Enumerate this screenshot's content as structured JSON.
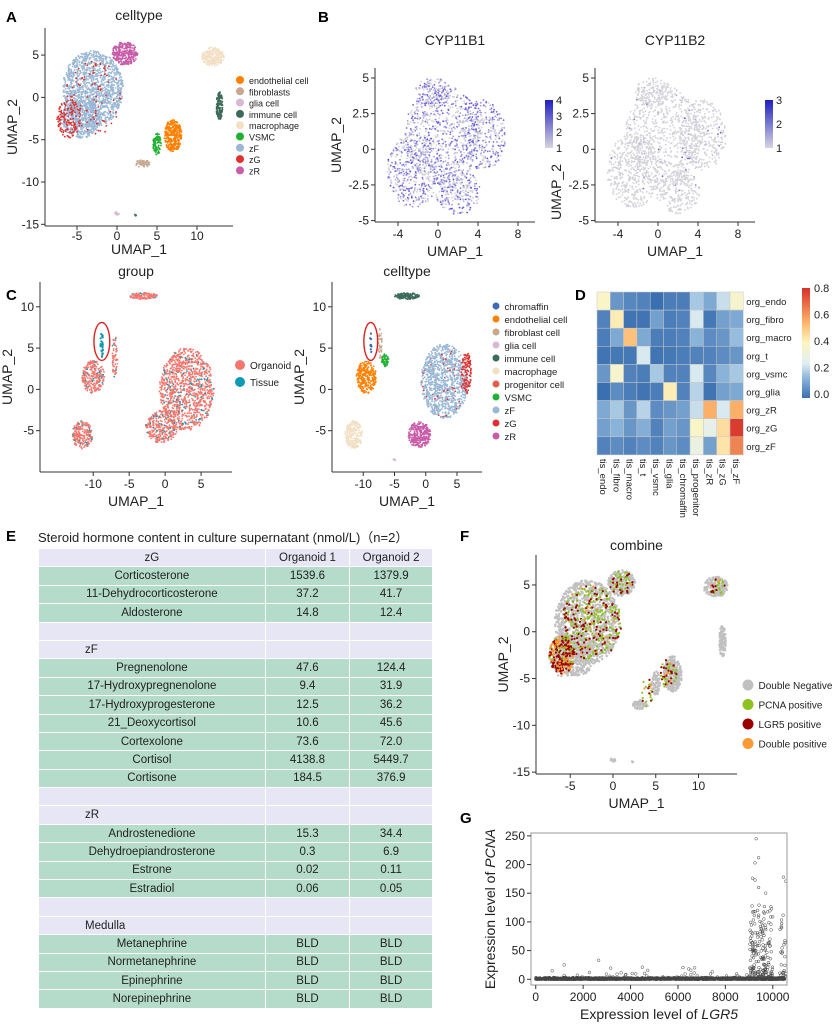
{
  "panel_labels": {
    "A": "A",
    "B": "B",
    "C": "C",
    "D": "D",
    "E": "E",
    "F": "F",
    "G": "G"
  },
  "colors": {
    "chromaffin": "#3d6bb3",
    "endothelial": "#ff8000",
    "fibroblast": "#c8a890",
    "glia": "#d8b8d8",
    "immune": "#3d6b5a",
    "macrophage": "#f2dfc4",
    "progenitor": "#e0604a",
    "VSMC": "#22b033",
    "zF": "#9ab8d6",
    "zG": "#e03030",
    "zR": "#c85ca8",
    "organoid": "#f8766d",
    "tissue": "#0e9ab5",
    "double_negative": "#c0c0c0",
    "pcna_positive": "#8dc21f",
    "lgr5_positive": "#9b0000",
    "double_positive": "#ff9933",
    "highlight_ellipse": "#e02020"
  },
  "chart_data": [
    {
      "id": "A",
      "type": "scatter",
      "title": "celltype",
      "xlabel": "UMAP_1",
      "ylabel": "UMAP_2",
      "xticks": [
        -5,
        0,
        5,
        10
      ],
      "yticks": [
        5,
        0,
        -5,
        -10,
        -15
      ],
      "xlim": [
        -9,
        14.5
      ],
      "ylim": [
        -15.2,
        8.2
      ],
      "legend": {
        "placement": "right",
        "entries": [
          {
            "label": "endothelial cell",
            "color": "#ff8000"
          },
          {
            "label": "fibroblasts",
            "color": "#c8a890"
          },
          {
            "label": "glia cell",
            "color": "#d8b8d8"
          },
          {
            "label": "immune cell",
            "color": "#3d6b5a"
          },
          {
            "label": "macrophage",
            "color": "#f2dfc4"
          },
          {
            "label": "VSMC",
            "color": "#22b033"
          },
          {
            "label": "zF",
            "color": "#9ab8d6"
          },
          {
            "label": "zG",
            "color": "#e03030"
          },
          {
            "label": "zR",
            "color": "#c85ca8"
          }
        ]
      },
      "clusters": [
        {
          "group": "zF",
          "center": [
            -3,
            1
          ],
          "spread": [
            3.8,
            4.5
          ],
          "n": 1400
        },
        {
          "group": "zF",
          "center": [
            -4.5,
            -2.5
          ],
          "spread": [
            2.5,
            2.3
          ],
          "n": 500
        },
        {
          "group": "zG",
          "center": [
            -6,
            -2.5
          ],
          "spread": [
            1.5,
            2.3
          ],
          "n": 150
        },
        {
          "group": "zR",
          "center": [
            1,
            5.2
          ],
          "spread": [
            1.6,
            1.4
          ],
          "n": 300
        },
        {
          "group": "macrophage",
          "center": [
            12,
            4.8
          ],
          "spread": [
            1.4,
            1.1
          ],
          "n": 250
        },
        {
          "group": "immune",
          "center": [
            12.8,
            -1
          ],
          "spread": [
            0.4,
            1.7
          ],
          "n": 150
        },
        {
          "group": "endothelial",
          "center": [
            7,
            -4.5
          ],
          "spread": [
            1.1,
            1.9
          ],
          "n": 350
        },
        {
          "group": "VSMC",
          "center": [
            5,
            -5.5
          ],
          "spread": [
            0.5,
            1.3
          ],
          "n": 100
        },
        {
          "group": "fibroblast",
          "center": [
            3.2,
            -7.8
          ],
          "spread": [
            0.9,
            0.5
          ],
          "n": 60
        },
        {
          "group": "glia",
          "center": [
            0,
            -13.7
          ],
          "spread": [
            0.3,
            0.2
          ],
          "n": 15
        },
        {
          "group": "immune",
          "center": [
            2.3,
            -13.9
          ],
          "spread": [
            0.1,
            0.1
          ],
          "n": 5
        }
      ]
    },
    {
      "id": "B1",
      "type": "scatter",
      "title": "CYP11B1",
      "xlabel": "UMAP_1",
      "ylabel": "UMAP_2",
      "xticks": [
        -4,
        0,
        4,
        8
      ],
      "yticks": [
        5.0,
        2.5,
        0.0,
        -2.5,
        -5.0
      ],
      "xlim": [
        -6.3,
        9.7
      ],
      "ylim": [
        -5.1,
        5.7
      ],
      "colorbar": {
        "min": 1,
        "max": 4,
        "ticks": [
          4,
          3,
          2,
          1
        ],
        "low": "#d6d3e0",
        "high": "#2020c0"
      },
      "expression_level": "high"
    },
    {
      "id": "B2",
      "type": "scatter",
      "title": "CYP11B2",
      "xlabel": "UMAP_1",
      "ylabel": "UMAP_2",
      "xticks": [
        -4,
        0,
        4,
        8
      ],
      "yticks": [
        5.0,
        2.5,
        0.0,
        -2.5,
        -5.0
      ],
      "xlim": [
        -6.3,
        9.7
      ],
      "ylim": [
        -5.1,
        5.7
      ],
      "colorbar": {
        "min": 1,
        "max": 3,
        "ticks": [
          3,
          2,
          1
        ],
        "low": "#d6d3e0",
        "high": "#2020c0"
      },
      "expression_level": "low"
    },
    {
      "id": "C1",
      "type": "scatter",
      "title": "group",
      "xlabel": "UMAP_1",
      "ylabel": "UMAP_2",
      "xticks": [
        -10,
        -5,
        0,
        5
      ],
      "yticks": [
        10,
        5,
        0,
        -5
      ],
      "xlim": [
        -17.4,
        9.3
      ],
      "ylim": [
        -10,
        13
      ],
      "legend": {
        "placement": "right",
        "entries": [
          {
            "label": "Organoid",
            "color": "#f8766d"
          },
          {
            "label": "Tissue",
            "color": "#0e9ab5"
          }
        ]
      },
      "highlight": {
        "shape": "ellipse",
        "center": [
          -8.8,
          5.8
        ],
        "radii": [
          1.1,
          2.3
        ]
      }
    },
    {
      "id": "C2",
      "type": "scatter",
      "title": "celltype",
      "xlabel": "UMAP_1",
      "ylabel": "UMAP_2",
      "xticks": [
        -10,
        -5,
        0,
        5
      ],
      "yticks": [
        10,
        5,
        0,
        -5
      ],
      "xlim": [
        -15,
        9
      ],
      "ylim": [
        -10,
        13
      ],
      "legend": {
        "placement": "right",
        "entries": [
          {
            "label": "chromaffin",
            "color": "#3d6bb3"
          },
          {
            "label": "endothelial cell",
            "color": "#ff8000"
          },
          {
            "label": "fibroblast cell",
            "color": "#c8a890"
          },
          {
            "label": "glia cell",
            "color": "#d8b8d8"
          },
          {
            "label": "immune cell",
            "color": "#3d6b5a"
          },
          {
            "label": "macrophage",
            "color": "#f2dfc4"
          },
          {
            "label": "progenitor cell",
            "color": "#e0604a"
          },
          {
            "label": "VSMC",
            "color": "#22b033"
          },
          {
            "label": "zF",
            "color": "#9ab8d6"
          },
          {
            "label": "zG",
            "color": "#e03030"
          },
          {
            "label": "zR",
            "color": "#c85ca8"
          }
        ]
      },
      "highlight": {
        "shape": "ellipse",
        "center": [
          -8.8,
          5.8
        ],
        "radii": [
          1.1,
          2.3
        ]
      }
    },
    {
      "id": "D",
      "type": "heatmap",
      "rows": [
        "org_endo",
        "org_fibro",
        "org_macro",
        "org_t",
        "org_vsmc",
        "org_glia",
        "org_zR",
        "org_zG",
        "org_zF"
      ],
      "columns": [
        "tis_endo",
        "tis_fibro",
        "tis_macro",
        "tis_t",
        "tis_vsmc",
        "tis_glia",
        "tis_chromaffin",
        "tis_progenitor",
        "tis_zR",
        "tis_zG",
        "tis_zF"
      ],
      "values": [
        [
          0.38,
          0.08,
          0.05,
          0.04,
          0.0,
          0.03,
          0.03,
          0.18,
          0.12,
          0.22,
          0.36
        ],
        [
          0.04,
          0.42,
          0.01,
          0.01,
          0.1,
          0.03,
          0.04,
          0.24,
          0.02,
          0.1,
          0.12
        ],
        [
          0.03,
          0.12,
          0.52,
          0.12,
          0.03,
          0.03,
          0.04,
          0.14,
          0.06,
          0.08,
          0.16
        ],
        [
          0.01,
          0.02,
          0.02,
          0.24,
          0.01,
          0.02,
          0.03,
          0.04,
          0.04,
          0.06,
          0.08
        ],
        [
          0.08,
          0.36,
          0.04,
          0.03,
          0.18,
          0.04,
          0.04,
          0.24,
          0.05,
          0.14,
          0.18
        ],
        [
          0.0,
          0.06,
          0.03,
          0.01,
          0.03,
          0.42,
          0.04,
          0.2,
          0.01,
          0.1,
          0.12
        ],
        [
          0.12,
          0.18,
          0.08,
          0.2,
          0.06,
          0.08,
          0.1,
          0.22,
          0.56,
          0.24,
          0.56
        ],
        [
          0.1,
          0.14,
          0.08,
          0.13,
          0.04,
          0.1,
          0.08,
          0.38,
          0.28,
          0.46,
          0.78
        ],
        [
          0.04,
          0.06,
          0.04,
          0.06,
          0.04,
          0.08,
          0.06,
          0.3,
          0.1,
          0.44,
          0.64
        ]
      ],
      "colorbar": {
        "min": 0,
        "max": 0.8,
        "ticks": [
          "0.8",
          "0.6",
          "0.4",
          "0.2",
          "0.0"
        ]
      }
    },
    {
      "id": "F",
      "type": "scatter",
      "title": "combine",
      "xlabel": "UMAP_1",
      "ylabel": "UMAP_2",
      "xticks": [
        -5,
        0,
        5,
        10
      ],
      "yticks": [
        5,
        0,
        -5,
        -10,
        -15
      ],
      "xlim": [
        -9,
        14.5
      ],
      "ylim": [
        -15.2,
        8.2
      ],
      "legend": {
        "placement": "right",
        "entries": [
          {
            "label": "Double Negative",
            "color": "#c0c0c0"
          },
          {
            "label": "PCNA positive",
            "color": "#8dc21f"
          },
          {
            "label": "LGR5 positive",
            "color": "#9b0000"
          },
          {
            "label": "Double positive",
            "color": "#ff9933"
          }
        ]
      }
    },
    {
      "id": "G",
      "type": "scatter",
      "xlabel_prefix": "Expression level of ",
      "xlabel_gene": "LGR5",
      "ylabel_prefix": "Expression level of ",
      "ylabel_gene": "PCNA",
      "xticks": [
        0,
        2000,
        4000,
        6000,
        8000,
        10000
      ],
      "yticks": [
        0,
        50,
        100,
        150,
        200,
        250
      ],
      "xlim": [
        -200,
        10600
      ],
      "ylim": [
        -10,
        255
      ],
      "notable_points": [
        [
          9300,
          245
        ],
        [
          9400,
          212
        ],
        [
          9250,
          203
        ],
        [
          9150,
          176
        ],
        [
          9250,
          173
        ],
        [
          10450,
          178
        ],
        [
          10550,
          171
        ],
        [
          9400,
          160
        ],
        [
          9700,
          150
        ],
        [
          2650,
          33
        ],
        [
          1200,
          25
        ],
        [
          4500,
          21
        ],
        [
          6700,
          20
        ]
      ]
    }
  ],
  "table_e": {
    "title": "Steroid hormone content in culture supernatant (nmol/L)（n=2）",
    "rows": [
      {
        "kind": "hdr",
        "cells": [
          "zG",
          "Organoid 1",
          "Organoid 2"
        ]
      },
      {
        "kind": "val",
        "cells": [
          "Corticosterone",
          "1539.6",
          "1379.9"
        ]
      },
      {
        "kind": "val",
        "cells": [
          "11-Dehydrocorticosterone",
          "37.2",
          "41.7"
        ]
      },
      {
        "kind": "val",
        "cells": [
          "Aldosterone",
          "14.8",
          "12.4"
        ]
      },
      {
        "kind": "blank",
        "cells": [
          "",
          "",
          ""
        ]
      },
      {
        "kind": "sec",
        "cells": [
          "zF",
          "",
          ""
        ]
      },
      {
        "kind": "val",
        "cells": [
          "Pregnenolone",
          "47.6",
          "124.4"
        ]
      },
      {
        "kind": "val",
        "cells": [
          "17-Hydroxypregnenolone",
          "9.4",
          "31.9"
        ]
      },
      {
        "kind": "val",
        "cells": [
          "17-Hydroxyprogesterone",
          "12.5",
          "36.2"
        ]
      },
      {
        "kind": "val",
        "cells": [
          "21_Deoxycortisol",
          "10.6",
          "45.6"
        ]
      },
      {
        "kind": "val",
        "cells": [
          "Cortexolone",
          "73.6",
          "72.0"
        ]
      },
      {
        "kind": "val",
        "cells": [
          "Cortisol",
          "4138.8",
          "5449.7"
        ]
      },
      {
        "kind": "val",
        "cells": [
          "Cortisone",
          "184.5",
          "376.9"
        ]
      },
      {
        "kind": "blank",
        "cells": [
          "",
          "",
          ""
        ]
      },
      {
        "kind": "sec",
        "cells": [
          "zR",
          "",
          ""
        ]
      },
      {
        "kind": "val",
        "cells": [
          "Androstenedione",
          "15.3",
          "34.4"
        ]
      },
      {
        "kind": "val",
        "cells": [
          "Dehydroepiandrosterone",
          "0.3",
          "6.9"
        ]
      },
      {
        "kind": "val",
        "cells": [
          "Estrone",
          "0.02",
          "0.11"
        ]
      },
      {
        "kind": "val",
        "cells": [
          "Estradiol",
          "0.06",
          "0.05"
        ]
      },
      {
        "kind": "blank",
        "cells": [
          "",
          "",
          ""
        ]
      },
      {
        "kind": "sec",
        "cells": [
          "Medulla",
          "",
          ""
        ]
      },
      {
        "kind": "val",
        "cells": [
          "Metanephrine",
          "BLD",
          "BLD"
        ]
      },
      {
        "kind": "val",
        "cells": [
          "Normetanephrine",
          "BLD",
          "BLD"
        ]
      },
      {
        "kind": "val",
        "cells": [
          "Epinephrine",
          "BLD",
          "BLD"
        ]
      },
      {
        "kind": "val",
        "cells": [
          "Norepinephrine",
          "BLD",
          "BLD"
        ]
      }
    ]
  }
}
